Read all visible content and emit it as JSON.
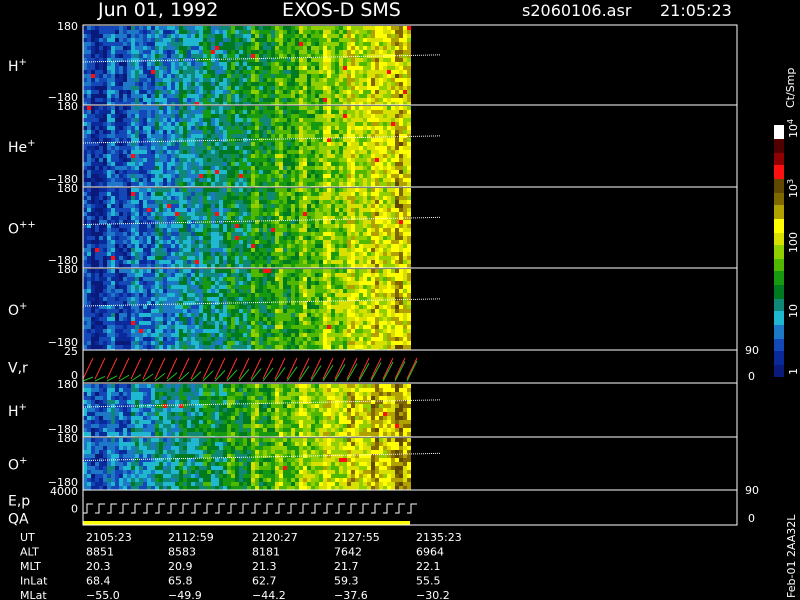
{
  "header": {
    "date": "Jun 01, 1992",
    "title": "EXOS-D SMS",
    "file": "s2060106.asr",
    "time": "21:05:23"
  },
  "panels": [
    {
      "label": "H",
      "sup": "+",
      "top": "180",
      "bottom": "−180"
    },
    {
      "label": "He",
      "sup": "+",
      "top": "180",
      "bottom": "−180"
    },
    {
      "label": "O",
      "sup": "++",
      "top": "180",
      "bottom": "−180"
    },
    {
      "label": "O",
      "sup": "+",
      "top": "180",
      "bottom": "−180"
    },
    {
      "label": "V,r",
      "top": "25",
      "bottom": "0",
      "right_top": "90",
      "right_bottom": "0"
    },
    {
      "label": "H",
      "sup": "+",
      "top": "180",
      "bottom": "−180"
    },
    {
      "label": "O",
      "sup": "+",
      "top": "180",
      "bottom": "−180"
    },
    {
      "label": "E,p",
      "label2": "QA",
      "top": "4000",
      "bottom": "0",
      "right_top": "90",
      "right_bottom": "0"
    }
  ],
  "colorbar": {
    "unit": "Ct/Smp",
    "ticks": [
      {
        "base": "10",
        "exp": "4"
      },
      {
        "base": "10",
        "exp": "3"
      },
      {
        "base": "100"
      },
      {
        "base": "10"
      },
      {
        "base": "1"
      }
    ]
  },
  "footer": {
    "rows": [
      [
        "UT",
        "2105:23",
        "2112:59",
        "2120:27",
        "2127:55",
        "2135:23"
      ],
      [
        "ALT",
        "8851",
        "8583",
        "8181",
        "7642",
        "6964"
      ],
      [
        "MLT",
        "20.3",
        "20.9",
        "21.3",
        "21.7",
        "22.1"
      ],
      [
        "InLat",
        "68.4",
        "65.8",
        "62.7",
        "59.3",
        "55.5"
      ],
      [
        "MLat",
        "−55.0",
        "−49.9",
        "−44.2",
        "−37.6",
        "−30.2"
      ]
    ]
  },
  "side_label": "Feb-01 2AA32L"
}
